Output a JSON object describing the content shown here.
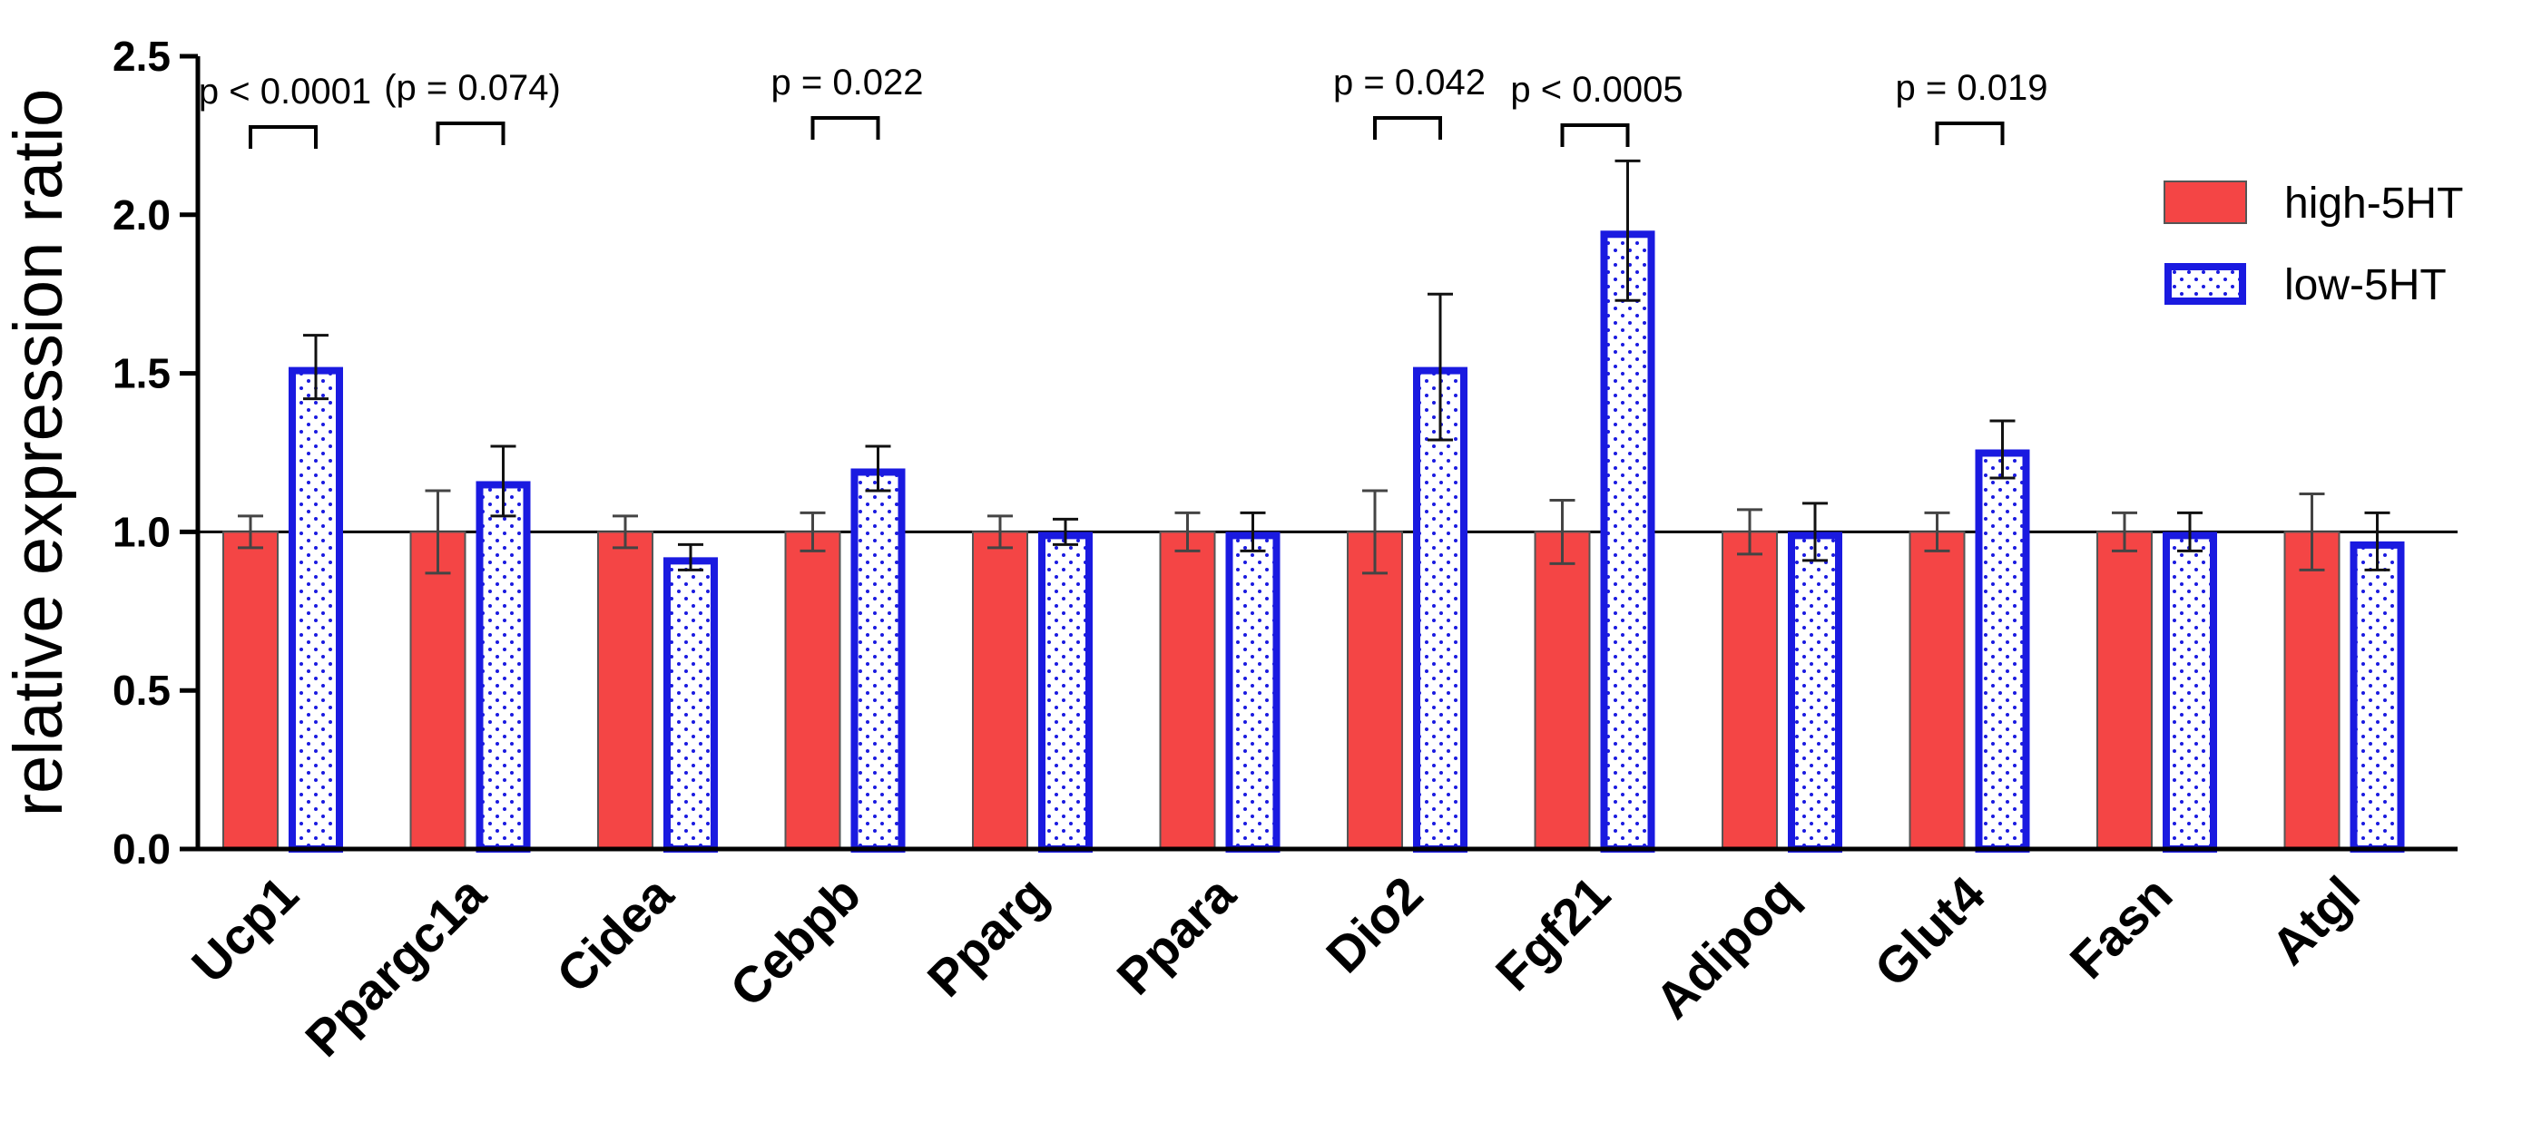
{
  "chart_data": {
    "type": "bar",
    "title": "",
    "xlabel": "",
    "ylabel": "relative expression ratio",
    "ylim": [
      0,
      2.5
    ],
    "yticks": [
      "0.0",
      "0.5",
      "1.0",
      "1.5",
      "2.0",
      "2.5"
    ],
    "reference_line": 1.0,
    "categories": [
      "Ucp1",
      "Ppargc1a",
      "Cidea",
      "Cebpb",
      "Pparg",
      "Ppara",
      "Dio2",
      "Fgf21",
      "Adipoq",
      "Glut4",
      "Fasn",
      "Atgl"
    ],
    "series": [
      {
        "name": "high-5HT",
        "color": "#f44545",
        "values": [
          1.0,
          1.0,
          1.0,
          1.0,
          1.0,
          1.0,
          1.0,
          1.0,
          1.0,
          1.0,
          1.0,
          1.0
        ],
        "errors": [
          0.05,
          0.13,
          0.05,
          0.06,
          0.05,
          0.06,
          0.13,
          0.1,
          0.07,
          0.06,
          0.06,
          0.12
        ]
      },
      {
        "name": "low-5HT",
        "color": "#1a1ae0",
        "values": [
          1.52,
          1.16,
          0.92,
          1.2,
          1.0,
          1.0,
          1.52,
          1.95,
          1.0,
          1.26,
          1.0,
          0.97
        ],
        "errors": [
          0.1,
          0.11,
          0.04,
          0.07,
          0.04,
          0.06,
          0.23,
          0.22,
          0.09,
          0.09,
          0.06,
          0.09
        ]
      }
    ],
    "annotations": [
      {
        "category": "Ucp1",
        "text": "p < 0.0001"
      },
      {
        "category": "Ppargc1a",
        "text": "(p = 0.074)"
      },
      {
        "category": "Cebpb",
        "text": "p = 0.022"
      },
      {
        "category": "Dio2",
        "text": "p = 0.042"
      },
      {
        "category": "Fgf21",
        "text": "p < 0.0005"
      },
      {
        "category": "Glut4",
        "text": "p = 0.019"
      }
    ],
    "legend": {
      "position": "top-right",
      "items": [
        "high-5HT",
        "low-5HT"
      ]
    }
  }
}
